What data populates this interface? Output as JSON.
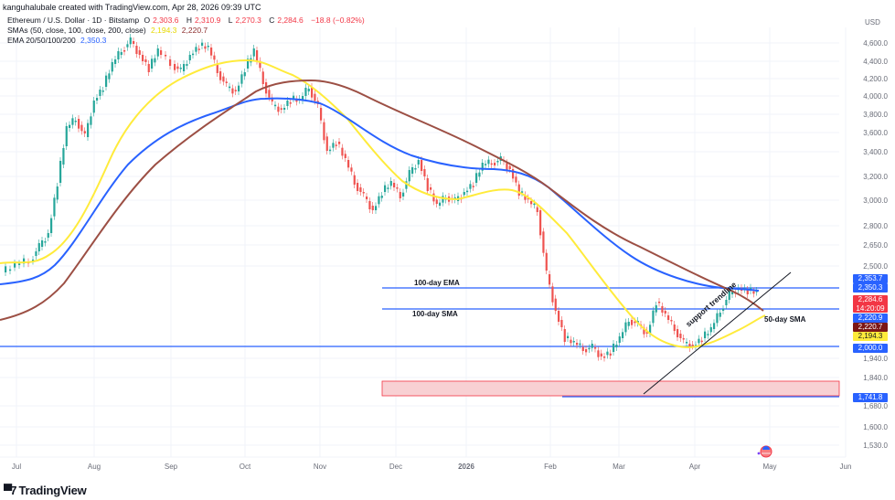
{
  "credit": "kanguhalubale created with TradingView.com, Apr 28, 2026 09:39 UTC",
  "legend": {
    "symbol": "Ethereum / U.S. Dollar · 1D · Bitstamp",
    "open_label": "O",
    "open": "2,303.6",
    "high_label": "H",
    "high": "2,310.9",
    "low_label": "L",
    "low": "2,270.3",
    "close_label": "C",
    "close": "2,284.6",
    "change": "−18.8 (−0.82%)",
    "sma_label": "SMAs (50, close, 100, close, 200, close)",
    "sma50_value": "2,194.3",
    "sma200_value": "2,220.7",
    "ema_label": "EMA 20/50/100/200",
    "ema_value": "2,350.3"
  },
  "price_axis": {
    "currency": "USD",
    "ticks": [
      "4,600.0",
      "4,400.0",
      "4,200.0",
      "4,000.0",
      "3,800.0",
      "3,600.0",
      "3,400.0",
      "3,200.0",
      "3,000.0",
      "2,800.0",
      "2,650.0",
      "2,500.0",
      "1,940.0",
      "1,840.0",
      "1,680.0",
      "1,600.0",
      "1,530.0"
    ],
    "tags": [
      {
        "value": "2,353.7",
        "color": "#2962ff"
      },
      {
        "value": "2,350.3",
        "color": "#2962ff"
      },
      {
        "value": "2,284.6",
        "color": "#f23645",
        "sub": "14:20:09"
      },
      {
        "value": "2,220.9",
        "color": "#2962ff"
      },
      {
        "value": "2,220.7",
        "color": "#7b1616"
      },
      {
        "value": "2,194.3",
        "color": "#ffeb3b",
        "text_color": "#131722"
      },
      {
        "value": "2,000.0",
        "color": "#2962ff"
      },
      {
        "value": "1,741.8",
        "color": "#2962ff"
      }
    ]
  },
  "time_axis": {
    "ticks": [
      "Jul",
      "Aug",
      "Sep",
      "Oct",
      "Nov",
      "Dec",
      "2026",
      "Feb",
      "Mar",
      "Apr",
      "May",
      "Jun"
    ]
  },
  "annotations": {
    "ema100": "100-day EMA",
    "sma100": "100-day SMA",
    "sma50": "50-day SMA",
    "trendline": "support trendline"
  },
  "brand": "TradingView",
  "colors": {
    "up": "#26a69a",
    "down": "#ef5350",
    "sma50": "#ffeb3b",
    "ema100": "#2962ff",
    "sma200": "#9c4f44",
    "hline": "#2962ff",
    "zone_fill": "#f8d0d3",
    "zone_border": "#f23645"
  },
  "chart_data": {
    "type": "candlestick",
    "title": "Ethereum / U.S. Dollar · 1D · Bitstamp",
    "ylabel": "USD",
    "yscale": "log",
    "ylim": [
      1500,
      4800
    ],
    "x_ticks": [
      "Jul",
      "Aug",
      "Sep",
      "Oct",
      "Nov",
      "Dec",
      "2026",
      "Feb",
      "Mar",
      "Apr",
      "May",
      "Jun"
    ],
    "ohlc_last": {
      "open": 2303.6,
      "high": 2310.9,
      "low": 2270.3,
      "close": 2284.6,
      "change": -18.8,
      "change_pct": -0.82
    },
    "close_approx": [
      {
        "x": "Jul",
        "close": 2500
      },
      {
        "x": "mid-Jul",
        "close": 3000
      },
      {
        "x": "late-Jul",
        "close": 3750
      },
      {
        "x": "Aug",
        "close": 3700
      },
      {
        "x": "mid-Aug",
        "close": 4300
      },
      {
        "x": "late-Aug",
        "close": 4600
      },
      {
        "x": "Sep",
        "close": 4300
      },
      {
        "x": "mid-Sep",
        "close": 4500
      },
      {
        "x": "late-Sep",
        "close": 4000
      },
      {
        "x": "Oct",
        "close": 4500
      },
      {
        "x": "mid-Oct",
        "close": 3900
      },
      {
        "x": "late-Oct",
        "close": 3950
      },
      {
        "x": "Nov",
        "close": 3500
      },
      {
        "x": "mid-Nov",
        "close": 3100
      },
      {
        "x": "late-Nov",
        "close": 2850
      },
      {
        "x": "Dec",
        "close": 3000
      },
      {
        "x": "mid-Dec",
        "close": 3250
      },
      {
        "x": "late-Dec",
        "close": 2950
      },
      {
        "x": "2026",
        "close": 3100
      },
      {
        "x": "mid-Jan",
        "close": 3300
      },
      {
        "x": "late-Jan",
        "close": 2950
      },
      {
        "x": "Feb",
        "close": 2300
      },
      {
        "x": "early-Feb",
        "close": 2000
      },
      {
        "x": "mid-Feb",
        "close": 1950
      },
      {
        "x": "Mar",
        "close": 2000
      },
      {
        "x": "mid-Mar",
        "close": 2100
      },
      {
        "x": "late-Mar",
        "close": 1980
      },
      {
        "x": "Apr",
        "close": 2100
      },
      {
        "x": "mid-Apr",
        "close": 2350
      },
      {
        "x": "late-Apr",
        "close": 2284.6
      }
    ],
    "series": [
      {
        "name": "SMA 50",
        "color": "#ffeb3b",
        "last": 2194.3
      },
      {
        "name": "EMA 100",
        "color": "#2962ff",
        "last": 2350.3
      },
      {
        "name": "SMA 200",
        "color": "#9c4f44",
        "last": 2220.7
      }
    ],
    "horizontal_lines": [
      {
        "label": "100-day EMA",
        "value": 2353.7
      },
      {
        "label": "100-day SMA",
        "value": 2220.9
      },
      {
        "label": "",
        "value": 2000.0
      },
      {
        "label": "",
        "value": 1741.8
      }
    ],
    "zones": [
      {
        "from": 1741.8,
        "to": 1810,
        "color": "#f8d0d3"
      }
    ],
    "trendlines": [
      {
        "label": "support trendline",
        "from": {
          "x": "late-Feb",
          "y": 1760
        },
        "to": {
          "x": "early-May",
          "y": 2400
        }
      }
    ]
  }
}
